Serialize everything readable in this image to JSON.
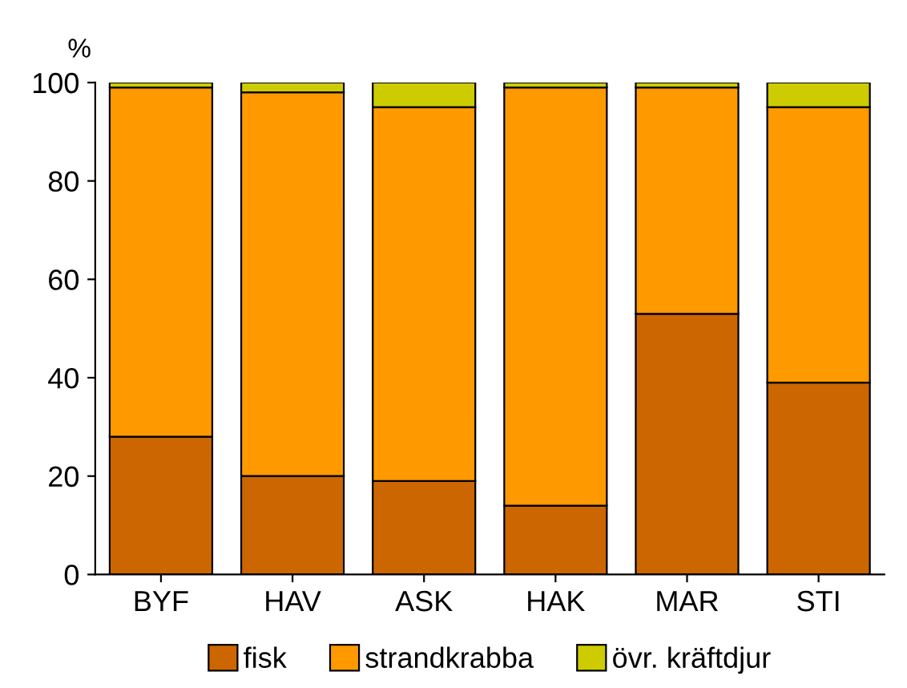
{
  "chart_data": {
    "type": "bar",
    "stacked": true,
    "ylabel": "%",
    "categories": [
      "BYF",
      "HAV",
      "ASK",
      "HAK",
      "MAR",
      "STI"
    ],
    "series": [
      {
        "name": "fisk",
        "color": "#cc6600",
        "values": [
          28,
          20,
          19,
          14,
          53,
          39
        ]
      },
      {
        "name": "strandkrabba",
        "color": "#ff9900",
        "values": [
          71,
          78,
          76,
          85,
          46,
          56
        ]
      },
      {
        "name": "övr. kräftdjur",
        "color": "#cccc00",
        "values": [
          1,
          2,
          5,
          1,
          1,
          5
        ]
      }
    ],
    "ylim": [
      0,
      100
    ],
    "yticks": [
      0,
      20,
      40,
      60,
      80,
      100
    ],
    "grid": false,
    "legend": "bottom"
  }
}
